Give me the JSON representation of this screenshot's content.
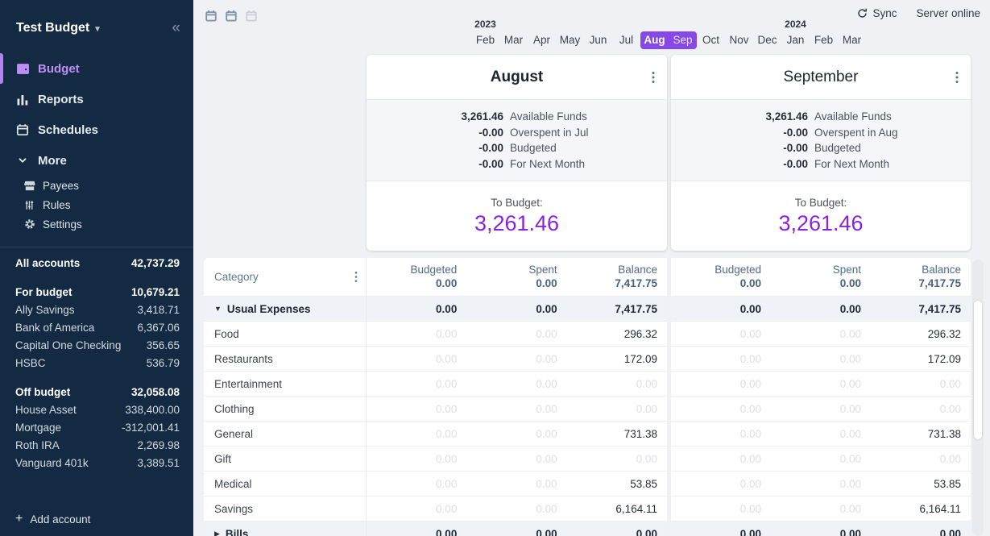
{
  "colors": {
    "sidebar_bg": "#132a42",
    "sidebar_active_purple": "#bd8ff5",
    "selection_purple": "#8748e8",
    "to_budget_purple": "#8b22e0"
  },
  "icons": {
    "collapse": "«",
    "dropdown_caret": "▾",
    "add": "+"
  },
  "sidebar": {
    "title": "Test Budget",
    "nav": [
      {
        "label": "Budget",
        "active": true
      },
      {
        "label": "Reports",
        "active": false
      },
      {
        "label": "Schedules",
        "active": false
      }
    ],
    "more_label": "More",
    "more_items": [
      {
        "label": "Payees"
      },
      {
        "label": "Rules"
      },
      {
        "label": "Settings"
      }
    ],
    "accounts": [
      {
        "label": "All accounts",
        "value": "42,737.29",
        "type": "header"
      },
      {
        "label": "For budget",
        "value": "10,679.21",
        "type": "header"
      },
      {
        "label": "Ally Savings",
        "value": "3,418.71",
        "type": "item"
      },
      {
        "label": "Bank of America",
        "value": "6,367.06",
        "type": "item"
      },
      {
        "label": "Capital One Checking",
        "value": "356.65",
        "type": "item"
      },
      {
        "label": "HSBC",
        "value": "536.79",
        "type": "item"
      },
      {
        "label": "Off budget",
        "value": "32,058.08",
        "type": "header"
      },
      {
        "label": "House Asset",
        "value": "338,400.00",
        "type": "item"
      },
      {
        "label": "Mortgage",
        "value": "-312,001.41",
        "type": "item"
      },
      {
        "label": "Roth IRA",
        "value": "2,269.98",
        "type": "item"
      },
      {
        "label": "Vanguard 401k",
        "value": "3,389.51",
        "type": "item"
      }
    ],
    "add_account_label": "Add account"
  },
  "topbar": {
    "sync_label": "Sync",
    "server_status": "Server online"
  },
  "month_nav": {
    "cells": [
      {
        "month": "Feb",
        "year": "2023"
      },
      {
        "month": "Mar"
      },
      {
        "month": "Apr"
      },
      {
        "month": "May"
      },
      {
        "month": "Jun"
      },
      {
        "month": "Jul"
      },
      {
        "month": "Aug",
        "selected": "start"
      },
      {
        "month": "Sep",
        "selected": "end"
      },
      {
        "month": "Oct"
      },
      {
        "month": "Nov"
      },
      {
        "month": "Dec"
      },
      {
        "month": "Jan",
        "year": "2024"
      },
      {
        "month": "Feb"
      },
      {
        "month": "Mar"
      }
    ]
  },
  "months": [
    {
      "name": "August",
      "summary": [
        {
          "value": "3,261.46",
          "label": "Available Funds"
        },
        {
          "value": "-0.00",
          "label": "Overspent in Jul"
        },
        {
          "value": "-0.00",
          "label": "Budgeted"
        },
        {
          "value": "-0.00",
          "label": "For Next Month"
        }
      ],
      "to_budget_label": "To Budget:",
      "to_budget": "3,261.46"
    },
    {
      "name": "September",
      "summary": [
        {
          "value": "3,261.46",
          "label": "Available Funds"
        },
        {
          "value": "-0.00",
          "label": "Overspent in Aug"
        },
        {
          "value": "-0.00",
          "label": "Budgeted"
        },
        {
          "value": "-0.00",
          "label": "For Next Month"
        }
      ],
      "to_budget_label": "To Budget:",
      "to_budget": "3,261.46"
    }
  ],
  "table": {
    "category_header": "Category",
    "column_labels": [
      "Budgeted",
      "Spent",
      "Balance"
    ],
    "column_totals": [
      "0.00",
      "0.00",
      "7,417.75"
    ],
    "groups": [
      {
        "name": "Usual Expenses",
        "arrow": "▼",
        "totals": [
          "0.00",
          "0.00",
          "7,417.75"
        ],
        "rows": [
          {
            "name": "Food",
            "values": [
              "0.00",
              "0.00",
              "296.32"
            ]
          },
          {
            "name": "Restaurants",
            "values": [
              "0.00",
              "0.00",
              "172.09"
            ]
          },
          {
            "name": "Entertainment",
            "values": [
              "0.00",
              "0.00",
              "0.00"
            ]
          },
          {
            "name": "Clothing",
            "values": [
              "0.00",
              "0.00",
              "0.00"
            ]
          },
          {
            "name": "General",
            "values": [
              "0.00",
              "0.00",
              "731.38"
            ]
          },
          {
            "name": "Gift",
            "values": [
              "0.00",
              "0.00",
              "0.00"
            ]
          },
          {
            "name": "Medical",
            "values": [
              "0.00",
              "0.00",
              "53.85"
            ]
          },
          {
            "name": "Savings",
            "values": [
              "0.00",
              "0.00",
              "6,164.11"
            ]
          }
        ]
      },
      {
        "name": "Bills",
        "arrow": "▶",
        "totals": [
          "0.00",
          "0.00",
          "0.00"
        ],
        "rows": []
      }
    ]
  }
}
